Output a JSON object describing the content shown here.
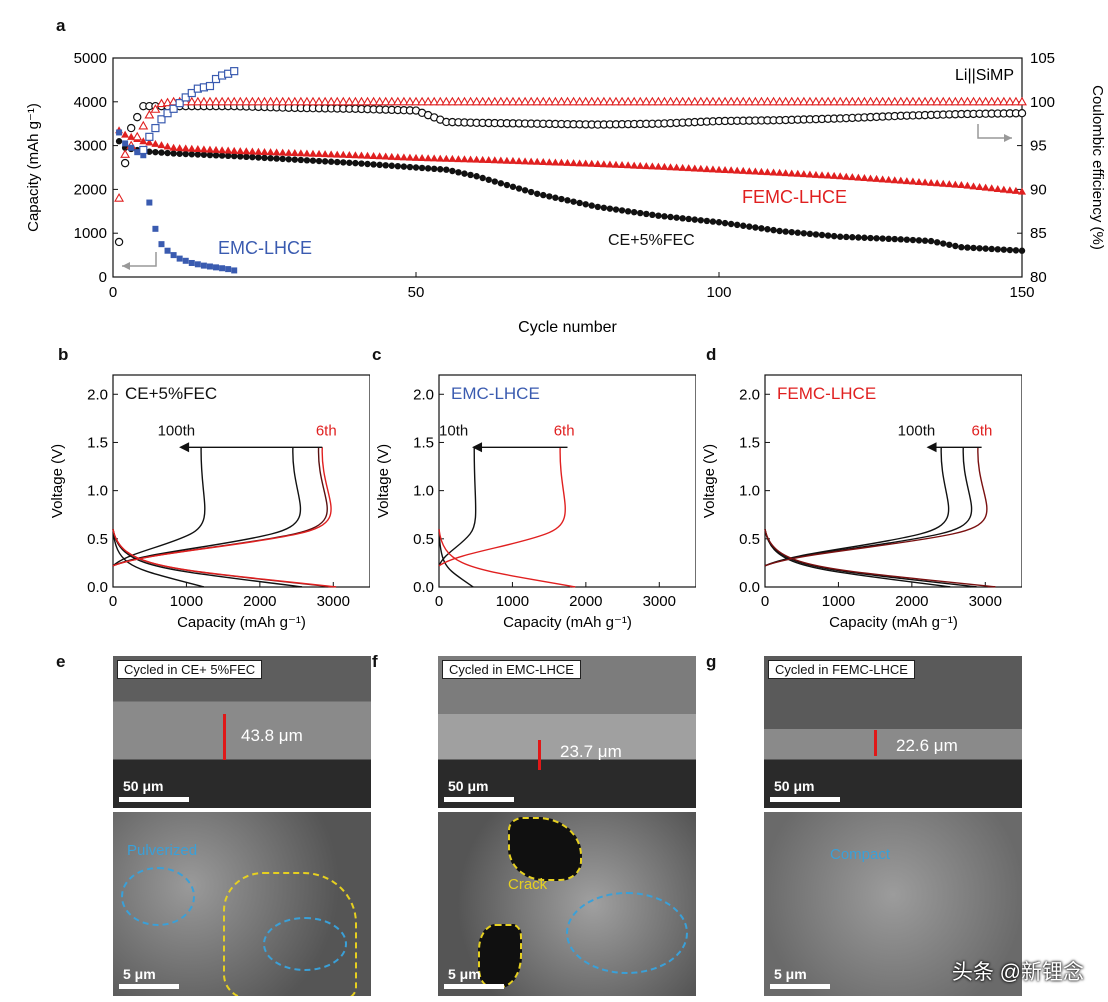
{
  "panels": {
    "a": "a",
    "b": "b",
    "c": "c",
    "d": "d",
    "e": "e",
    "f": "f",
    "g": "g"
  },
  "chart_data": [
    {
      "id": "a",
      "type": "scatter",
      "xlabel": "Cycle number",
      "ylabel": "Capacity (mAh g⁻¹)",
      "y2label": "Coulombic efficiency (%)",
      "xlim": [
        0,
        150
      ],
      "ylim": [
        0,
        5000
      ],
      "y2lim": [
        80,
        105
      ],
      "xticks": [
        0,
        50,
        100,
        150
      ],
      "yticks": [
        0,
        1000,
        2000,
        3000,
        4000,
        5000
      ],
      "y2ticks": [
        80,
        85,
        90,
        95,
        100,
        105
      ],
      "annotation": "Li||SiMP",
      "series": [
        {
          "name": "CE+5%FEC",
          "axis": "left",
          "color": "#111111",
          "marker": "filled-circle",
          "x": [
            1,
            2,
            5,
            10,
            20,
            30,
            40,
            50,
            55,
            60,
            70,
            80,
            90,
            100,
            110,
            120,
            130,
            135,
            140,
            150
          ],
          "y": [
            3100,
            2950,
            2870,
            2820,
            2760,
            2680,
            2600,
            2500,
            2450,
            2300,
            1900,
            1600,
            1400,
            1250,
            1050,
            920,
            860,
            820,
            680,
            600
          ]
        },
        {
          "name": "CE+5%FEC CE",
          "axis": "right",
          "color": "#111111",
          "marker": "open-circle",
          "x": [
            1,
            2,
            3,
            5,
            8,
            10,
            20,
            30,
            40,
            50,
            55,
            60,
            70,
            80,
            90,
            100,
            110,
            120,
            130,
            140,
            150
          ],
          "y": [
            84,
            93,
            97,
            99.5,
            99.5,
            99.5,
            99.5,
            99.3,
            99.2,
            99,
            97.7,
            97.6,
            97.5,
            97.4,
            97.5,
            97.8,
            97.9,
            98.1,
            98.4,
            98.6,
            98.7
          ]
        },
        {
          "name": "FEMC-LHCE",
          "axis": "left",
          "color": "#e02020",
          "marker": "filled-triangle",
          "x": [
            1,
            2,
            5,
            10,
            20,
            30,
            40,
            50,
            60,
            70,
            80,
            90,
            100,
            110,
            120,
            130,
            140,
            150
          ],
          "y": [
            3350,
            3250,
            3100,
            2950,
            2880,
            2830,
            2780,
            2720,
            2680,
            2630,
            2580,
            2520,
            2450,
            2380,
            2300,
            2200,
            2100,
            1950
          ]
        },
        {
          "name": "FEMC-LHCE CE",
          "axis": "right",
          "color": "#e02020",
          "marker": "open-triangle",
          "x": [
            1,
            2,
            4,
            6,
            8,
            10,
            20,
            40,
            60,
            80,
            100,
            120,
            128,
            150
          ],
          "y": [
            89,
            94,
            96,
            98.5,
            99.8,
            100,
            100,
            100,
            100,
            100,
            100,
            100,
            100,
            100
          ]
        },
        {
          "name": "EMC-LHCE",
          "axis": "left",
          "color": "#3a5bb0",
          "marker": "filled-square",
          "x": [
            1,
            2,
            3,
            4,
            5,
            6,
            7,
            8,
            9,
            10,
            11,
            12,
            13,
            14,
            15,
            16,
            17,
            18,
            19,
            20
          ],
          "y": [
            3300,
            3050,
            2950,
            2850,
            2780,
            1700,
            1100,
            750,
            600,
            500,
            420,
            370,
            320,
            290,
            260,
            240,
            220,
            200,
            180,
            150
          ]
        },
        {
          "name": "EMC-LHCE CE",
          "axis": "right",
          "color": "#3a5bb0",
          "marker": "open-square",
          "x": [
            5,
            6,
            7,
            8,
            9,
            10,
            12,
            14,
            16,
            17,
            18,
            19,
            20
          ],
          "y": [
            94.5,
            96,
            97,
            98,
            98.7,
            99.2,
            100.5,
            101.5,
            101.8,
            102.6,
            103,
            103.2,
            103.5
          ]
        }
      ],
      "labels": {
        "femc": "FEMC-LHCE",
        "ce": "CE+5%FEC",
        "emc": "EMC-LHCE"
      }
    },
    {
      "id": "b",
      "type": "line",
      "xlabel": "Capacity (mAh g⁻¹)",
      "ylabel": "Voltage (V)",
      "xlim": [
        0,
        3500
      ],
      "ylim": [
        0,
        2.2
      ],
      "xticks": [
        0,
        1000,
        2000,
        3000
      ],
      "yticks": [
        0.0,
        0.5,
        1.0,
        1.5,
        2.0
      ],
      "legend": "CE+5%FEC",
      "legend_color": "#111111",
      "arrow": {
        "from": 2850,
        "to": 900,
        "y": 1.45
      },
      "cycle_labels": [
        {
          "text": "100th",
          "color": "#111111"
        },
        {
          "text": "6th",
          "color": "#e02020"
        }
      ],
      "series": [
        {
          "name": "100th",
          "color": "#111111",
          "endcap": 1200,
          "dis_end": 1200
        },
        {
          "name": "mid",
          "color": "#111111",
          "endcap": 2450,
          "dis_end": 2500
        },
        {
          "name": "mid2",
          "color": "#5a1010",
          "endcap": 2800,
          "dis_end": 2900
        },
        {
          "name": "6th",
          "color": "#e02020",
          "endcap": 2850,
          "dis_end": 2950
        }
      ]
    },
    {
      "id": "c",
      "type": "line",
      "xlabel": "Capacity (mAh g⁻¹)",
      "ylabel": "Voltage (V)",
      "xlim": [
        0,
        3500
      ],
      "ylim": [
        0,
        2.2
      ],
      "xticks": [
        0,
        1000,
        2000,
        3000
      ],
      "yticks": [
        0.0,
        0.5,
        1.0,
        1.5,
        2.0
      ],
      "legend": "EMC-LHCE",
      "legend_color": "#3a5bb0",
      "arrow": {
        "from": 1750,
        "to": 450,
        "y": 1.45
      },
      "cycle_labels": [
        {
          "text": "10th",
          "color": "#111111"
        },
        {
          "text": "6th",
          "color": "#e02020"
        }
      ],
      "series": [
        {
          "name": "10th",
          "color": "#111111",
          "endcap": 480,
          "dis_end": 450
        },
        {
          "name": "6th",
          "color": "#e02020",
          "endcap": 1650,
          "dis_end": 1800
        }
      ]
    },
    {
      "id": "d",
      "type": "line",
      "xlabel": "Capacity (mAh g⁻¹)",
      "ylabel": "Voltage (V)",
      "xlim": [
        0,
        3500
      ],
      "ylim": [
        0,
        2.2
      ],
      "xticks": [
        0,
        1000,
        2000,
        3000
      ],
      "yticks": [
        0.0,
        0.5,
        1.0,
        1.5,
        2.0
      ],
      "legend": "FEMC-LHCE",
      "legend_color": "#e02020",
      "arrow": {
        "from": 2950,
        "to": 2200,
        "y": 1.45
      },
      "cycle_labels": [
        {
          "text": "100th",
          "color": "#111111"
        },
        {
          "text": "6th",
          "color": "#e02020"
        }
      ],
      "series": [
        {
          "name": "100th",
          "color": "#111111",
          "endcap": 2400,
          "dis_end": 2450
        },
        {
          "name": "mid",
          "color": "#111111",
          "endcap": 2700,
          "dis_end": 2800
        },
        {
          "name": "6th",
          "color": "#7a1010",
          "endcap": 2900,
          "dis_end": 3050
        }
      ]
    }
  ],
  "sem": {
    "e": {
      "tag": "Cycled in CE+ 5%FEC",
      "thickness": "43.8 μm",
      "scale_top": "50 μm",
      "scale_bottom": "5 μm",
      "note": "Pulverized",
      "note_color": "#3aa0d8"
    },
    "f": {
      "tag": "Cycled in EMC-LHCE",
      "thickness": "23.7 μm",
      "scale_top": "50 μm",
      "scale_bottom": "5 μm",
      "note": "Crack",
      "note_color": "#e6d020"
    },
    "g": {
      "tag": "Cycled in FEMC-LHCE",
      "thickness": "22.6 μm",
      "scale_top": "50 μm",
      "scale_bottom": "5 μm",
      "note": "Compact",
      "note_color": "#3aa0d8"
    }
  },
  "watermark": "头条 @新锂念"
}
